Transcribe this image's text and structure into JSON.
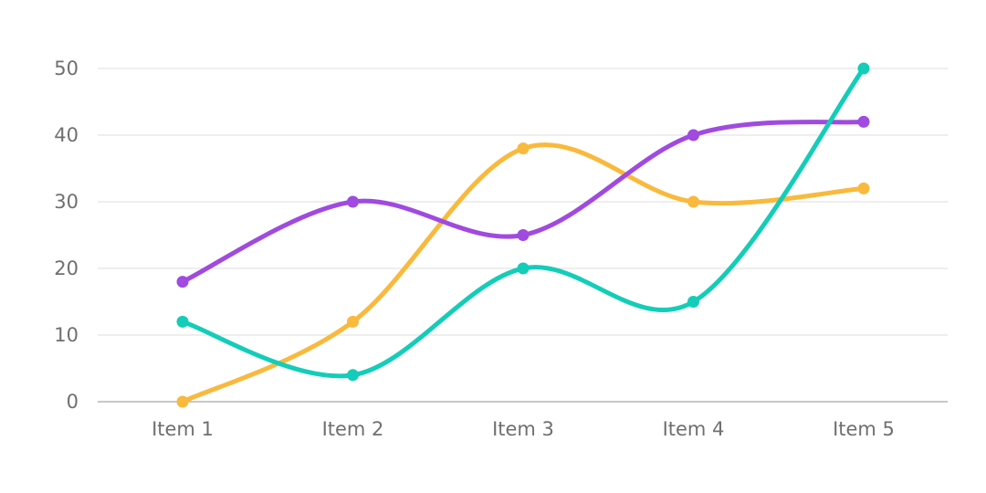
{
  "chart_data": {
    "type": "line",
    "title": "",
    "xlabel": "",
    "ylabel": "",
    "categories": [
      "Item 1",
      "Item 2",
      "Item 3",
      "Item 4",
      "Item 5"
    ],
    "y_ticks": [
      "0",
      "10",
      "20",
      "30",
      "40",
      "50"
    ],
    "ylim": [
      0,
      50
    ],
    "grid": true,
    "legend": "none",
    "smooth": true,
    "series": [
      {
        "color": "#F9B93C",
        "values": [
          0,
          12,
          38,
          30,
          32
        ]
      },
      {
        "color": "#A04AE0",
        "values": [
          18,
          30,
          25,
          40,
          42
        ]
      },
      {
        "color": "#13CDB8",
        "values": [
          12,
          4,
          20,
          15,
          50
        ]
      }
    ]
  }
}
